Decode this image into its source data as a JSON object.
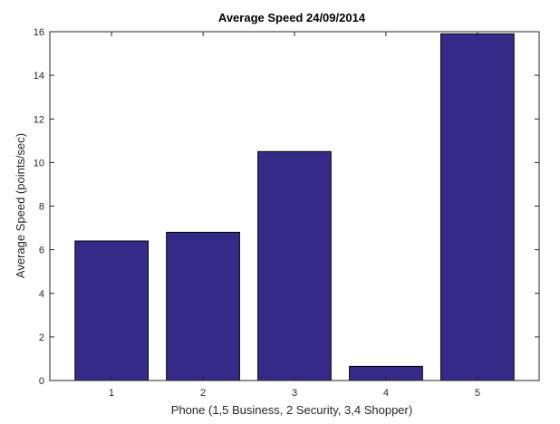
{
  "chart_data": {
    "type": "bar",
    "title": "Average Speed 24/09/2014",
    "xlabel": "Phone (1,5 Business, 2 Security, 3,4 Shopper)",
    "ylabel": "Average Speed (points/sec)",
    "categories": [
      "1",
      "2",
      "3",
      "4",
      "5"
    ],
    "values": [
      6.4,
      6.8,
      10.5,
      0.65,
      15.9
    ],
    "ylim": [
      0,
      16
    ],
    "yticks": [
      "0",
      "2",
      "4",
      "6",
      "8",
      "10",
      "12",
      "14",
      "16"
    ],
    "grid": false,
    "legend": "none",
    "bar_color": "#352a87"
  }
}
